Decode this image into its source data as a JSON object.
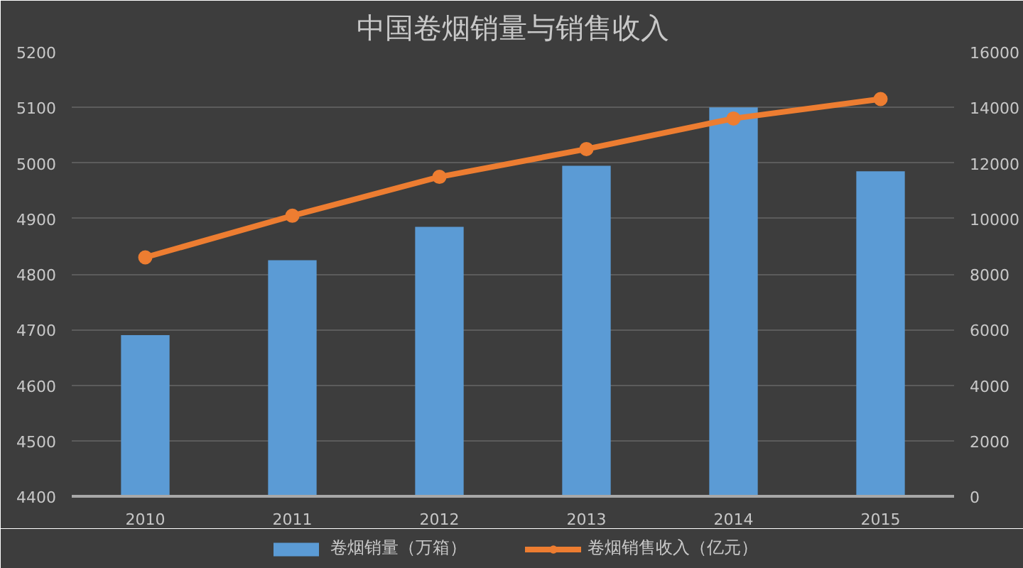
{
  "chart_data": {
    "type": "bar",
    "title": "中国卷烟销量与销售收入",
    "categories": [
      "2010",
      "2011",
      "2012",
      "2013",
      "2014",
      "2015"
    ],
    "series": [
      {
        "name": "卷烟销量（万箱）",
        "color": "#5b9bd5",
        "values": [
          4690,
          4825,
          4885,
          4995,
          5100,
          4985
        ]
      },
      {
        "name": "卷烟销售收入（亿元）",
        "type": "line",
        "axis": "y2",
        "color": "#ed7d31",
        "values": [
          8600,
          10100,
          11500,
          12500,
          13600,
          14300
        ]
      }
    ],
    "ylim": [
      4400,
      5200
    ],
    "yticks": [
      4400,
      4500,
      4600,
      4700,
      4800,
      4900,
      5000,
      5100,
      5200
    ],
    "y2lim": [
      0,
      16000
    ],
    "y2ticks": [
      0,
      2000,
      4000,
      6000,
      8000,
      10000,
      12000,
      14000,
      16000
    ],
    "grid": "y",
    "legend": "bottom",
    "marker": "circle",
    "line_style": "solid"
  }
}
